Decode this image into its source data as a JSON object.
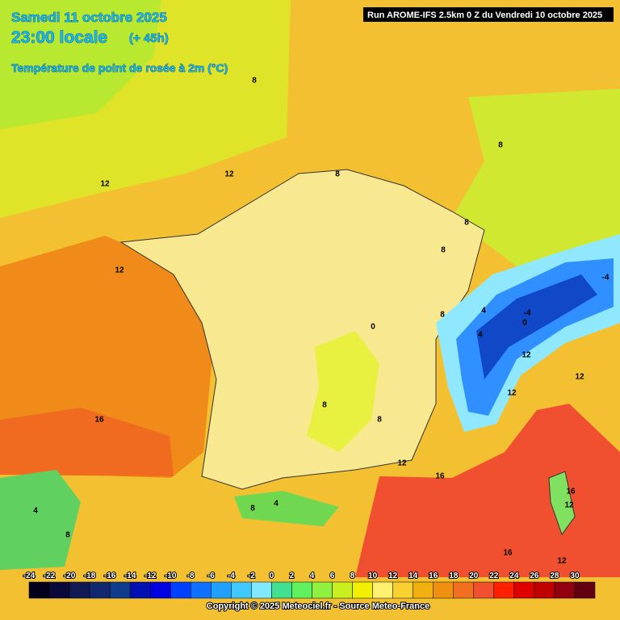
{
  "header": {
    "date": "Samedi 11 octobre 2025",
    "time": "23:00 locale",
    "lead": "(+ 45h)",
    "variable": "Température de point de rosée à 2m (°C)",
    "run": "Run AROME-IFS 2.5km 0 Z du Vendredi 10 octobre 2025"
  },
  "legend": {
    "ticks": [
      -24,
      -22,
      -20,
      -18,
      -16,
      -14,
      -12,
      -10,
      -8,
      -6,
      -4,
      -2,
      0,
      2,
      4,
      6,
      8,
      10,
      12,
      14,
      16,
      18,
      20,
      22,
      24,
      26,
      28,
      30
    ],
    "colors": [
      "#00001a",
      "#0a0a3a",
      "#101a55",
      "#12286e",
      "#103a8c",
      "#0010b0",
      "#0000e0",
      "#0040ff",
      "#1070ff",
      "#20a0ff",
      "#40c8ff",
      "#80e8ff",
      "#40e090",
      "#60f060",
      "#90f040",
      "#c8f020",
      "#f0f000",
      "#fff070",
      "#f8d030",
      "#f0b010",
      "#f09010",
      "#f07020",
      "#f05030",
      "#ff2000",
      "#e00000",
      "#c00000",
      "#900010",
      "#600010"
    ]
  },
  "contour_labels": [
    12,
    12,
    12,
    16,
    8,
    8,
    8,
    8,
    8,
    8,
    0,
    8,
    8,
    4,
    0,
    12,
    12,
    12,
    12,
    16,
    8,
    4,
    4,
    8,
    16,
    12,
    16,
    12,
    -4,
    -4,
    4
  ],
  "footer": {
    "copyright": "Copyright © 2025 Meteociel.fr - Source Meteo-France"
  }
}
